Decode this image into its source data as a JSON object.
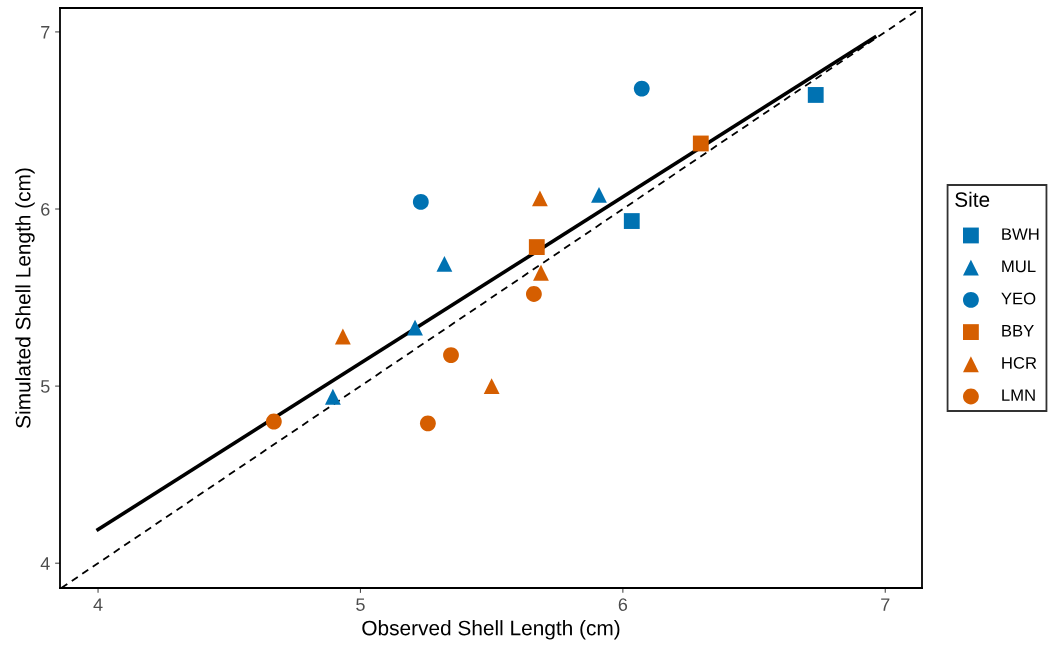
{
  "chart_data": {
    "type": "scatter",
    "xlabel": "Observed Shell Length (cm)",
    "ylabel": "Simulated Shell Length (cm)",
    "legend_title": "Site",
    "legend": "right",
    "grid": false,
    "xlim": [
      3.855,
      7.14
    ],
    "ylim": [
      3.86,
      7.135
    ],
    "xticks": [
      4,
      5,
      6,
      7
    ],
    "yticks": [
      4,
      5,
      6,
      7
    ],
    "series": [
      {
        "name": "BWH",
        "color": "#0072b2",
        "marker": "square",
        "x": [
          6.735,
          6.034
        ],
        "values": [
          6.644,
          5.932
        ]
      },
      {
        "name": "MUL",
        "color": "#0072b2",
        "marker": "triangle",
        "x": [
          4.895,
          5.208,
          5.32,
          5.909
        ],
        "values": [
          4.94,
          5.33,
          5.69,
          6.08
        ]
      },
      {
        "name": "YEO",
        "color": "#0072b2",
        "marker": "circle",
        "x": [
          5.23,
          6.072
        ],
        "values": [
          6.04,
          6.68
        ]
      },
      {
        "name": "BBY",
        "color": "#d55e00",
        "marker": "square",
        "x": [
          5.672,
          6.297
        ],
        "values": [
          5.785,
          6.37
        ]
      },
      {
        "name": "HCR",
        "color": "#d55e00",
        "marker": "triangle",
        "x": [
          4.933,
          5.684,
          5.688,
          5.5
        ],
        "values": [
          5.28,
          6.06,
          5.64,
          5.0
        ]
      },
      {
        "name": "LMN",
        "color": "#d55e00",
        "marker": "circle",
        "x": [
          4.67,
          5.345,
          5.257,
          5.661
        ],
        "values": [
          4.8,
          5.175,
          4.79,
          5.52
        ]
      },
      {
        "type": "line",
        "color": "#000000",
        "line_style": "solid",
        "x": [
          4,
          6.96
        ],
        "values": [
          4.19,
          6.97
        ]
      },
      {
        "type": "line",
        "color": "#000000",
        "line_style": "dashed",
        "x": [
          3.86,
          7.135
        ],
        "values": [
          3.86,
          7.135
        ]
      }
    ]
  }
}
